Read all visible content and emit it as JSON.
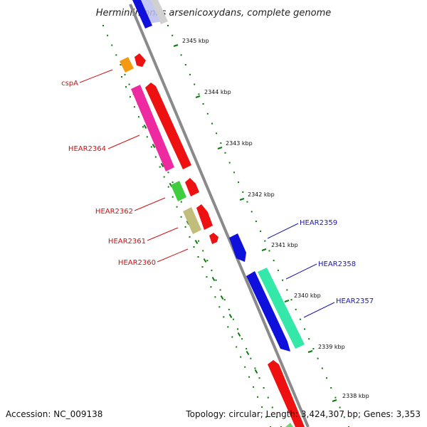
{
  "title": "Herminiimonas arsenicoxydans, complete genome",
  "footer": {
    "accession": "Accession: NC_009138",
    "summary": "Topology: circular; Length: 3,424,307 bp; Genes: 3,353"
  },
  "colors": {
    "backbone": "#8a8a8a",
    "tick": "#0a7a0a",
    "label_forward": "#1a1aa8",
    "label_reverse": "#cc1111"
  },
  "scale_marks": [
    "2345 kbp",
    "2344 kbp",
    "2343 kbp",
    "2342 kbp",
    "2341 kbp",
    "2340 kbp",
    "2339 kbp",
    "2338 kbp"
  ],
  "gene_labels": [
    {
      "text": "cspA",
      "strand": "reverse"
    },
    {
      "text": "HEAR2364",
      "strand": "reverse"
    },
    {
      "text": "HEAR2362",
      "strand": "reverse"
    },
    {
      "text": "HEAR2361",
      "strand": "reverse"
    },
    {
      "text": "HEAR2360",
      "strand": "reverse"
    },
    {
      "text": "HEAR2359",
      "strand": "forward"
    },
    {
      "text": "HEAR2358",
      "strand": "forward"
    },
    {
      "text": "HEAR2357",
      "strand": "forward"
    }
  ]
}
